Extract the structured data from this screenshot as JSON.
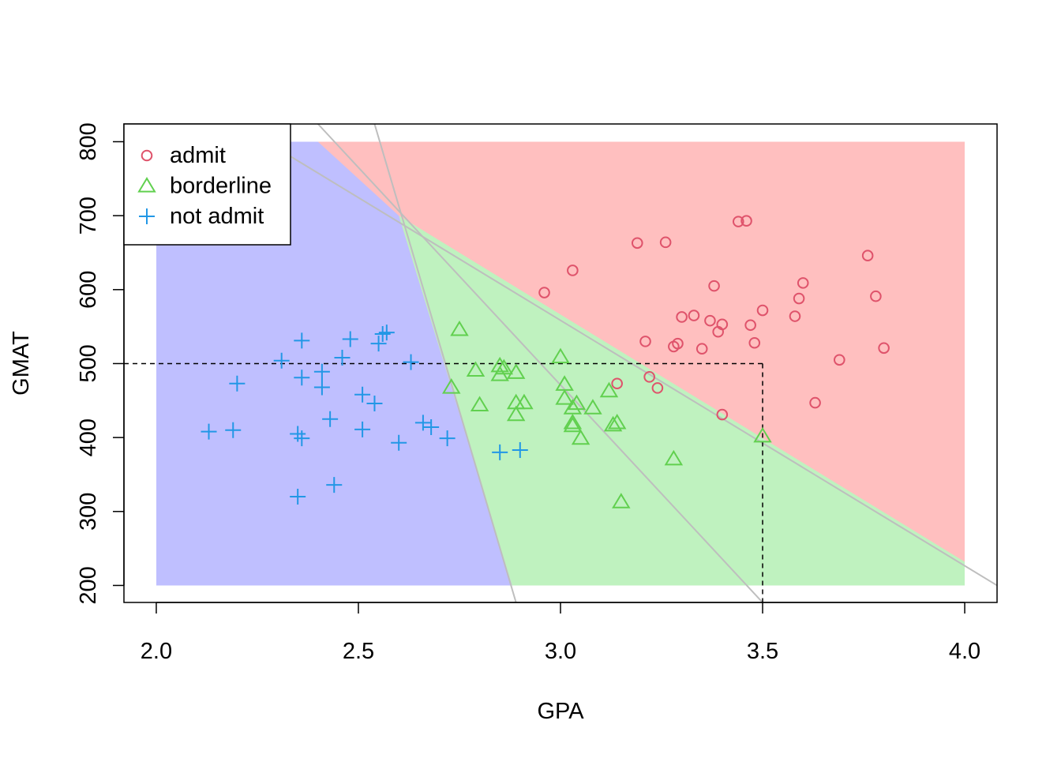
{
  "chart_data": {
    "type": "scatter",
    "title": "",
    "xlabel": "GPA",
    "ylabel": "GMAT",
    "xlim": [
      1.92,
      4.08
    ],
    "ylim": [
      177,
      824
    ],
    "xticks": [
      "2.0",
      "2.5",
      "3.0",
      "3.5",
      "4.0"
    ],
    "yticks": [
      "200",
      "300",
      "400",
      "500",
      "600",
      "700",
      "800"
    ],
    "grid": false,
    "legend": {
      "position": "top-left",
      "entries": [
        "admit",
        "borderline",
        "not admit"
      ]
    },
    "colors": {
      "admit": "#DF536B",
      "borderline": "#61D04F",
      "not_admit": "#2297E6",
      "region_admit": "#FFBFBF",
      "region_borderline": "#BFF2BF",
      "region_not_admit": "#BFBFFF",
      "boundary": "#BEBEBE"
    },
    "regions": {
      "x_range": [
        2.0,
        4.0
      ],
      "y_range": [
        200,
        800
      ],
      "not_admit_border": [
        [
          2.88,
          200
        ],
        [
          2.6,
          700
        ],
        [
          2.4,
          800
        ]
      ],
      "admit_border": [
        [
          2.44,
          800
        ],
        [
          2.6,
          700
        ],
        [
          4.0,
          232
        ]
      ]
    },
    "boundary_lines": [
      [
        [
          2.4,
          824
        ],
        [
          3.5,
          177
        ]
      ],
      [
        [
          2.54,
          824
        ],
        [
          2.89,
          177
        ]
      ],
      [
        [
          2.2,
          824
        ],
        [
          4.08,
          200
        ]
      ]
    ],
    "reference_point": {
      "x": 3.5,
      "y": 500
    },
    "series": [
      {
        "name": "admit",
        "marker": "circle",
        "points": [
          [
            2.96,
            596
          ],
          [
            3.03,
            626
          ],
          [
            3.19,
            663
          ],
          [
            3.26,
            664
          ],
          [
            3.44,
            692
          ],
          [
            3.46,
            693
          ],
          [
            3.38,
            605
          ],
          [
            3.6,
            609
          ],
          [
            3.59,
            588
          ],
          [
            3.76,
            646
          ],
          [
            3.78,
            591
          ],
          [
            3.3,
            563
          ],
          [
            3.33,
            565
          ],
          [
            3.37,
            558
          ],
          [
            3.4,
            553
          ],
          [
            3.39,
            543
          ],
          [
            3.47,
            552
          ],
          [
            3.5,
            572
          ],
          [
            3.58,
            564
          ],
          [
            3.21,
            530
          ],
          [
            3.29,
            527
          ],
          [
            3.28,
            523
          ],
          [
            3.35,
            520
          ],
          [
            3.48,
            528
          ],
          [
            3.8,
            521
          ],
          [
            3.69,
            505
          ],
          [
            3.63,
            447
          ],
          [
            3.4,
            431
          ],
          [
            3.14,
            473
          ],
          [
            3.22,
            482
          ],
          [
            3.24,
            467
          ]
        ]
      },
      {
        "name": "borderline",
        "marker": "triangle",
        "points": [
          [
            2.75,
            546
          ],
          [
            2.73,
            468
          ],
          [
            2.79,
            491
          ],
          [
            2.8,
            444
          ],
          [
            2.85,
            497
          ],
          [
            2.86,
            494
          ],
          [
            2.85,
            485
          ],
          [
            2.89,
            488
          ],
          [
            2.89,
            447
          ],
          [
            2.91,
            447
          ],
          [
            2.89,
            431
          ],
          [
            3.0,
            509
          ],
          [
            3.01,
            472
          ],
          [
            3.01,
            453
          ],
          [
            3.03,
            440
          ],
          [
            3.04,
            446
          ],
          [
            3.03,
            420
          ],
          [
            3.03,
            416
          ],
          [
            3.05,
            399
          ],
          [
            3.08,
            440
          ],
          [
            3.12,
            463
          ],
          [
            3.13,
            417
          ],
          [
            3.14,
            420
          ],
          [
            3.28,
            371
          ],
          [
            3.15,
            313
          ],
          [
            3.5,
            402
          ]
        ]
      },
      {
        "name": "not admit",
        "marker": "plus",
        "points": [
          [
            2.36,
            531
          ],
          [
            2.48,
            533
          ],
          [
            2.56,
            540
          ],
          [
            2.57,
            542
          ],
          [
            2.55,
            527
          ],
          [
            2.31,
            504
          ],
          [
            2.46,
            508
          ],
          [
            2.63,
            502
          ],
          [
            2.41,
            489
          ],
          [
            2.36,
            481
          ],
          [
            2.41,
            468
          ],
          [
            2.2,
            473
          ],
          [
            2.51,
            458
          ],
          [
            2.54,
            446
          ],
          [
            2.43,
            425
          ],
          [
            2.51,
            411
          ],
          [
            2.66,
            420
          ],
          [
            2.68,
            414
          ],
          [
            2.13,
            408
          ],
          [
            2.19,
            410
          ],
          [
            2.35,
            405
          ],
          [
            2.36,
            399
          ],
          [
            2.6,
            393
          ],
          [
            2.72,
            399
          ],
          [
            2.44,
            336
          ],
          [
            2.35,
            320
          ],
          [
            2.85,
            380
          ],
          [
            2.9,
            383
          ]
        ]
      }
    ]
  }
}
